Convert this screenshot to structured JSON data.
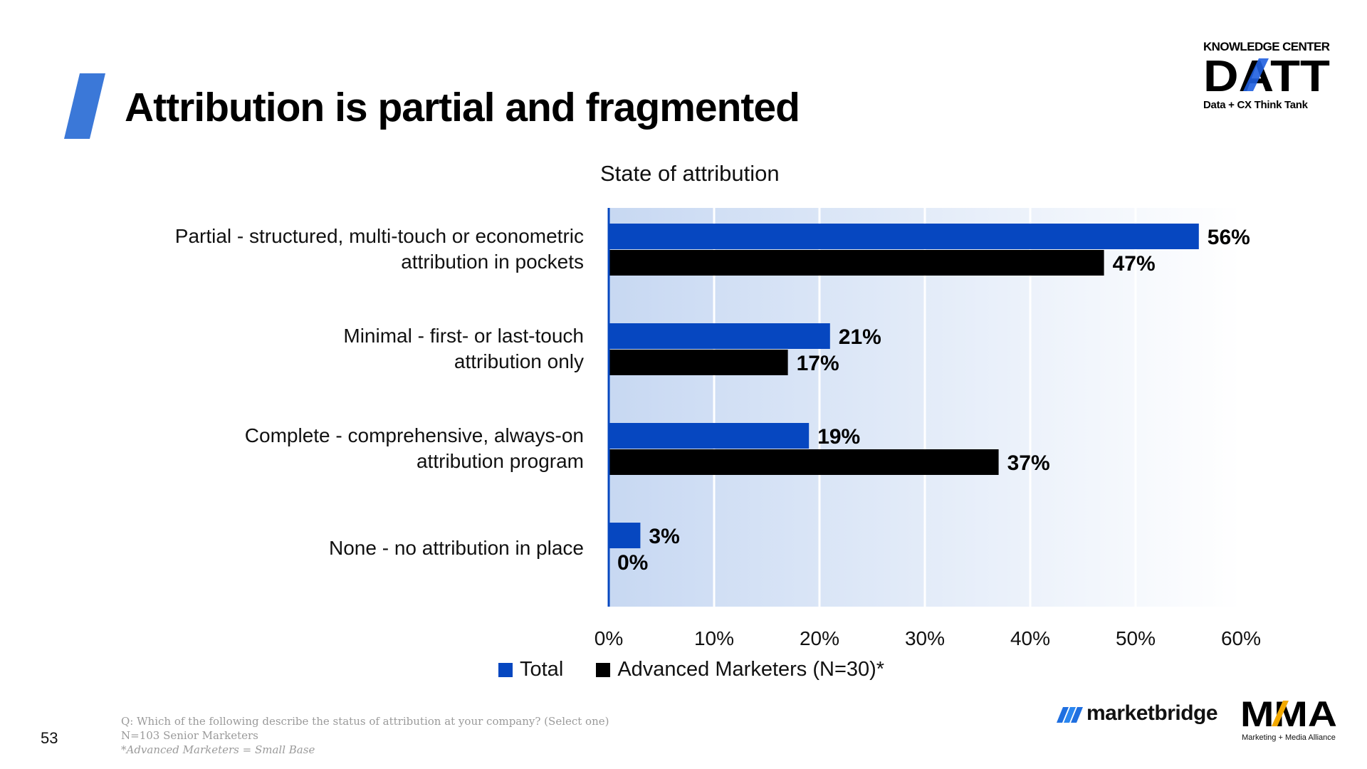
{
  "header": {
    "title": "Attribution is partial and fragmented",
    "accent_color": "#3b78d8"
  },
  "brand": {
    "top": "KNOWLEDGE CENTER",
    "mark": "DATT",
    "sub": "Data + CX Think Tank",
    "accent_color": "#1f5fe0"
  },
  "page_number": "53",
  "footnote": {
    "question": "Q: Which of the following describe the status of attribution at your company? (Select one)",
    "base": "N=103 Senior Marketers",
    "note": "*Advanced Marketers = Small Base"
  },
  "partners": {
    "marketbridge": "marketbridge",
    "mma": "MMA",
    "mma_sub": "Marketing + Media Alliance"
  },
  "chart_data": {
    "type": "bar",
    "orientation": "horizontal",
    "title": "State of attribution",
    "categories": [
      [
        "Partial - structured, multi-touch or econometric",
        "attribution in pockets"
      ],
      [
        "Minimal - first- or last-touch",
        "attribution only"
      ],
      [
        "Complete - comprehensive, always-on",
        "attribution program"
      ],
      [
        "None - no attribution in place"
      ]
    ],
    "series": [
      {
        "name": "Total",
        "color": "#0647c0",
        "values": [
          56,
          21,
          19,
          3
        ]
      },
      {
        "name": "Advanced Marketers (N=30)*",
        "color": "#000000",
        "values": [
          47,
          17,
          37,
          0
        ]
      }
    ],
    "value_labels": [
      [
        "56%",
        "21%",
        "19%",
        "3%"
      ],
      [
        "47%",
        "17%",
        "37%",
        "0%"
      ]
    ],
    "xlim": [
      0,
      60
    ],
    "xticks": [
      "0%",
      "10%",
      "20%",
      "30%",
      "40%",
      "50%",
      "60%"
    ],
    "grid": true,
    "legend_position": "bottom"
  }
}
